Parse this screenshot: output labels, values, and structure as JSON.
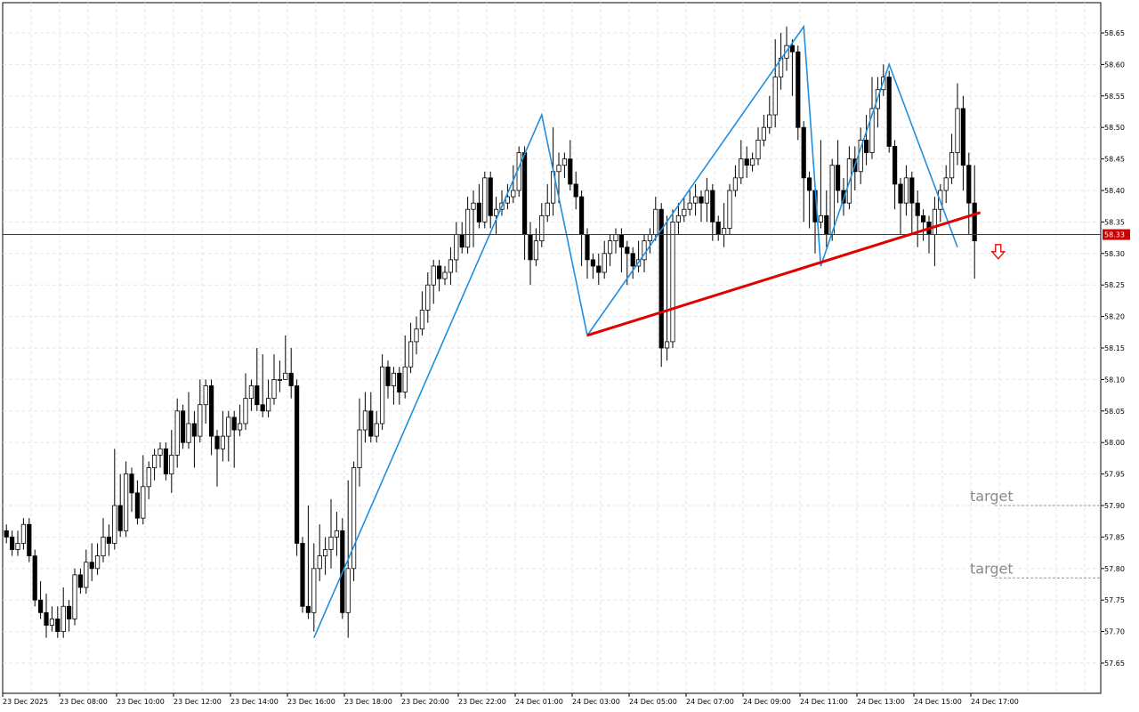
{
  "chart_data": {
    "type": "candlestick",
    "y_range": [
      57.61,
      58.71
    ],
    "y_ticks": [
      "58.65",
      "58.60",
      "58.55",
      "58.50",
      "58.45",
      "58.40",
      "58.35",
      "58.30",
      "58.25",
      "58.20",
      "58.15",
      "58.10",
      "58.05",
      "58.00",
      "57.95",
      "57.90",
      "57.85",
      "57.80",
      "57.75",
      "57.70",
      "57.65"
    ],
    "x_tick_labels": [
      "23 Dec 2025",
      "23 Dec 08:00",
      "23 Dec 10:00",
      "23 Dec 12:00",
      "23 Dec 14:00",
      "23 Dec 16:00",
      "23 Dec 18:00",
      "23 Dec 20:00",
      "23 Dec 22:00",
      "24 Dec 01:00",
      "24 Dec 03:00",
      "24 Dec 05:00",
      "24 Dec 07:00",
      "24 Dec 09:00",
      "24 Dec 11:00",
      "24 Dec 13:00",
      "24 Dec 15:00",
      "24 Dec 17:00"
    ],
    "bar_interval": "15 min",
    "grid": true,
    "current_price": {
      "value": 58.33,
      "label": "58.33",
      "color": "#cc0000"
    },
    "colors": {
      "bull_body": "#ffffff",
      "bear_body": "#000000",
      "wick": "#000000",
      "zigzag": "#1e8fe0",
      "neckline": "#e00000",
      "signal_arrow": "#e00000",
      "grid": "#e6e6e6",
      "annotation": "#8a8a8a",
      "target_line": "#999999"
    },
    "zigzag_points": [
      [
        57.69,
        57.69
      ],
      [
        58.52,
        58.52
      ]
    ],
    "zigzag": [
      {
        "bar": 54,
        "price": 57.69
      },
      {
        "bar": 94,
        "price": 58.52
      },
      {
        "bar": 102,
        "price": 58.17
      },
      {
        "bar": 140,
        "price": 58.66
      },
      {
        "bar": 143,
        "price": 58.28
      },
      {
        "bar": 155,
        "price": 58.6
      },
      {
        "bar": 167,
        "price": 58.31
      }
    ],
    "neckline": [
      {
        "bar": 102,
        "price": 58.17
      },
      {
        "bar": 171,
        "price": 58.365
      }
    ],
    "signal": {
      "type": "down-arrow",
      "bar": 174,
      "price": 58.3
    },
    "targets": [
      {
        "label": "target",
        "price": 57.9
      },
      {
        "label": "target",
        "price": 57.785
      }
    ],
    "candles": [
      [
        57.86,
        57.85,
        57.87,
        57.84
      ],
      [
        57.85,
        57.83,
        57.86,
        57.82
      ],
      [
        57.83,
        57.84,
        57.86,
        57.82
      ],
      [
        57.84,
        57.87,
        57.88,
        57.83
      ],
      [
        57.87,
        57.82,
        57.88,
        57.81
      ],
      [
        57.82,
        57.75,
        57.83,
        57.74
      ],
      [
        57.75,
        57.73,
        57.78,
        57.72
      ],
      [
        57.73,
        57.71,
        57.76,
        57.69
      ],
      [
        57.71,
        57.72,
        57.74,
        57.7
      ],
      [
        57.72,
        57.7,
        57.74,
        57.69
      ],
      [
        57.7,
        57.74,
        57.77,
        57.69
      ],
      [
        57.74,
        57.72,
        57.75,
        57.7
      ],
      [
        57.72,
        57.79,
        57.8,
        57.71
      ],
      [
        57.79,
        57.77,
        57.8,
        57.76
      ],
      [
        57.77,
        57.81,
        57.83,
        57.76
      ],
      [
        57.81,
        57.8,
        57.84,
        57.78
      ],
      [
        57.8,
        57.82,
        57.84,
        57.79
      ],
      [
        57.82,
        57.85,
        57.88,
        57.81
      ],
      [
        57.85,
        57.84,
        57.87,
        57.82
      ],
      [
        57.84,
        57.9,
        57.99,
        57.83
      ],
      [
        57.9,
        57.86,
        57.95,
        57.85
      ],
      [
        57.86,
        57.95,
        57.97,
        57.85
      ],
      [
        57.95,
        57.92,
        57.96,
        57.89
      ],
      [
        57.92,
        57.88,
        57.94,
        57.87
      ],
      [
        57.88,
        57.93,
        57.98,
        57.87
      ],
      [
        57.93,
        57.96,
        57.97,
        57.91
      ],
      [
        57.96,
        57.98,
        57.99,
        57.94
      ],
      [
        57.98,
        57.99,
        58.0,
        57.96
      ],
      [
        57.99,
        57.95,
        58.0,
        57.94
      ],
      [
        57.95,
        57.98,
        58.02,
        57.92
      ],
      [
        57.98,
        58.05,
        58.07,
        57.96
      ],
      [
        58.05,
        58.0,
        58.06,
        57.99
      ],
      [
        58.0,
        58.03,
        58.08,
        57.99
      ],
      [
        58.03,
        58.01,
        58.05,
        57.96
      ],
      [
        58.01,
        58.06,
        58.1,
        58.0
      ],
      [
        58.06,
        58.09,
        58.1,
        58.03
      ],
      [
        58.09,
        58.01,
        58.1,
        57.98
      ],
      [
        58.01,
        57.99,
        58.02,
        57.93
      ],
      [
        57.99,
        58.01,
        58.05,
        57.97
      ],
      [
        58.01,
        58.04,
        58.05,
        57.97
      ],
      [
        58.04,
        58.02,
        58.05,
        57.96
      ],
      [
        58.02,
        58.03,
        58.06,
        58.01
      ],
      [
        58.03,
        58.07,
        58.11,
        58.02
      ],
      [
        58.07,
        58.09,
        58.1,
        58.05
      ],
      [
        58.09,
        58.06,
        58.15,
        58.05
      ],
      [
        58.06,
        58.05,
        58.14,
        58.04
      ],
      [
        58.05,
        58.07,
        58.1,
        58.04
      ],
      [
        58.07,
        58.1,
        58.14,
        58.06
      ],
      [
        58.1,
        58.1,
        58.13,
        58.08
      ],
      [
        58.1,
        58.11,
        58.17,
        58.1
      ],
      [
        58.11,
        58.09,
        58.15,
        58.07
      ],
      [
        58.09,
        57.84,
        58.1,
        57.82
      ],
      [
        57.84,
        57.74,
        57.85,
        57.73
      ],
      [
        57.74,
        57.73,
        57.9,
        57.72
      ],
      [
        57.73,
        57.8,
        57.84,
        57.7
      ],
      [
        57.8,
        57.82,
        57.87,
        57.78
      ],
      [
        57.82,
        57.83,
        57.85,
        57.79
      ],
      [
        57.83,
        57.85,
        57.91,
        57.8
      ],
      [
        57.85,
        57.86,
        57.89,
        57.82
      ],
      [
        57.86,
        57.73,
        57.88,
        57.72
      ],
      [
        57.73,
        57.8,
        57.94,
        57.69
      ],
      [
        57.8,
        57.96,
        57.97,
        57.78
      ],
      [
        57.96,
        58.02,
        58.07,
        57.93
      ],
      [
        58.02,
        58.05,
        58.08,
        58.0
      ],
      [
        58.05,
        58.01,
        58.08,
        58.0
      ],
      [
        58.01,
        58.03,
        58.05,
        58.0
      ],
      [
        58.03,
        58.12,
        58.14,
        58.02
      ],
      [
        58.12,
        58.09,
        58.13,
        58.07
      ],
      [
        58.09,
        58.11,
        58.12,
        58.06
      ],
      [
        58.11,
        58.08,
        58.12,
        58.06
      ],
      [
        58.08,
        58.12,
        58.17,
        58.07
      ],
      [
        58.12,
        58.16,
        58.19,
        58.11
      ],
      [
        58.16,
        58.18,
        58.2,
        58.14
      ],
      [
        58.18,
        58.21,
        58.24,
        58.17
      ],
      [
        58.21,
        58.25,
        58.27,
        58.19
      ],
      [
        58.25,
        58.28,
        58.29,
        58.22
      ],
      [
        58.28,
        58.26,
        58.29,
        58.24
      ],
      [
        58.26,
        58.27,
        58.28,
        58.25
      ],
      [
        58.27,
        58.29,
        58.31,
        58.25
      ],
      [
        58.29,
        58.33,
        58.35,
        58.27
      ],
      [
        58.33,
        58.31,
        58.35,
        58.3
      ],
      [
        58.31,
        58.37,
        58.39,
        58.3
      ],
      [
        58.37,
        58.38,
        58.4,
        58.31
      ],
      [
        58.38,
        58.35,
        58.41,
        58.34
      ],
      [
        58.35,
        58.42,
        58.43,
        58.34
      ],
      [
        58.42,
        58.36,
        58.43,
        58.34
      ],
      [
        58.36,
        58.37,
        58.39,
        58.33
      ],
      [
        58.37,
        58.38,
        58.4,
        58.36
      ],
      [
        58.38,
        58.39,
        58.41,
        58.37
      ],
      [
        58.39,
        58.4,
        58.44,
        58.38
      ],
      [
        58.4,
        58.46,
        58.47,
        58.39
      ],
      [
        58.46,
        58.33,
        58.47,
        58.29
      ],
      [
        58.33,
        58.29,
        58.35,
        58.25
      ],
      [
        58.29,
        58.32,
        58.34,
        58.28
      ],
      [
        58.32,
        58.36,
        58.38,
        58.31
      ],
      [
        58.36,
        58.38,
        58.41,
        58.35
      ],
      [
        58.38,
        58.43,
        58.5,
        58.36
      ],
      [
        58.43,
        58.44,
        58.46,
        58.38
      ],
      [
        58.44,
        58.45,
        58.46,
        58.42
      ],
      [
        58.45,
        58.41,
        58.48,
        58.4
      ],
      [
        58.41,
        58.39,
        58.43,
        58.37
      ],
      [
        58.39,
        58.33,
        58.4,
        58.28
      ],
      [
        58.33,
        58.29,
        58.34,
        58.26
      ],
      [
        58.29,
        58.28,
        58.3,
        58.26
      ],
      [
        58.28,
        58.27,
        58.3,
        58.25
      ],
      [
        58.27,
        58.3,
        58.32,
        58.26
      ],
      [
        58.3,
        58.32,
        58.33,
        58.28
      ],
      [
        58.32,
        58.33,
        58.34,
        58.3
      ],
      [
        58.33,
        58.31,
        58.34,
        58.27
      ],
      [
        58.31,
        58.3,
        58.32,
        58.25
      ],
      [
        58.3,
        58.28,
        58.31,
        58.26
      ],
      [
        58.28,
        58.29,
        58.32,
        58.27
      ],
      [
        58.29,
        58.32,
        58.33,
        58.27
      ],
      [
        58.32,
        58.33,
        58.34,
        58.3
      ],
      [
        58.33,
        58.37,
        58.39,
        58.32
      ],
      [
        58.37,
        58.15,
        58.38,
        58.12
      ],
      [
        58.15,
        58.16,
        58.36,
        58.13
      ],
      [
        58.16,
        58.35,
        58.37,
        58.15
      ],
      [
        58.35,
        58.36,
        58.38,
        58.33
      ],
      [
        58.36,
        58.37,
        58.39,
        58.35
      ],
      [
        58.37,
        58.38,
        58.4,
        58.36
      ],
      [
        58.38,
        58.39,
        58.41,
        58.36
      ],
      [
        58.39,
        58.38,
        58.4,
        58.35
      ],
      [
        58.38,
        58.4,
        58.42,
        58.35
      ],
      [
        58.4,
        58.35,
        58.41,
        58.32
      ],
      [
        58.35,
        58.33,
        58.36,
        58.32
      ],
      [
        58.33,
        58.34,
        58.38,
        58.31
      ],
      [
        58.34,
        58.4,
        58.41,
        58.33
      ],
      [
        58.4,
        58.42,
        58.44,
        58.39
      ],
      [
        58.42,
        58.45,
        58.48,
        58.41
      ],
      [
        58.45,
        58.44,
        58.47,
        58.42
      ],
      [
        58.44,
        58.45,
        58.46,
        58.43
      ],
      [
        58.45,
        58.48,
        58.5,
        58.44
      ],
      [
        58.48,
        58.5,
        58.52,
        58.47
      ],
      [
        58.5,
        58.52,
        58.55,
        58.49
      ],
      [
        58.52,
        58.58,
        58.64,
        58.5
      ],
      [
        58.58,
        58.61,
        58.65,
        58.56
      ],
      [
        58.61,
        58.63,
        58.66,
        58.59
      ],
      [
        58.63,
        58.62,
        58.64,
        58.55
      ],
      [
        58.62,
        58.5,
        58.63,
        58.48
      ],
      [
        58.5,
        58.42,
        58.51,
        58.35
      ],
      [
        58.42,
        58.4,
        58.43,
        58.34
      ],
      [
        58.4,
        58.35,
        58.41,
        58.3
      ],
      [
        58.35,
        58.36,
        58.48,
        58.34
      ],
      [
        58.36,
        58.33,
        58.4,
        58.31
      ],
      [
        58.33,
        58.44,
        58.45,
        58.32
      ],
      [
        58.44,
        58.4,
        58.48,
        58.38
      ],
      [
        58.4,
        58.38,
        58.42,
        58.36
      ],
      [
        58.38,
        58.45,
        58.47,
        58.37
      ],
      [
        58.45,
        58.43,
        58.47,
        58.4
      ],
      [
        58.43,
        58.48,
        58.5,
        58.41
      ],
      [
        58.48,
        58.46,
        58.52,
        58.44
      ],
      [
        58.46,
        58.53,
        58.58,
        58.45
      ],
      [
        58.53,
        58.56,
        58.58,
        58.5
      ],
      [
        58.56,
        58.58,
        58.6,
        58.55
      ],
      [
        58.58,
        58.47,
        58.59,
        58.46
      ],
      [
        58.47,
        58.41,
        58.48,
        58.37
      ],
      [
        58.41,
        58.38,
        58.42,
        58.33
      ],
      [
        58.38,
        58.42,
        58.44,
        58.36
      ],
      [
        58.42,
        58.38,
        58.43,
        58.33
      ],
      [
        58.38,
        58.36,
        58.4,
        58.31
      ],
      [
        58.36,
        58.35,
        58.37,
        58.32
      ],
      [
        58.35,
        58.33,
        58.36,
        58.3
      ],
      [
        58.33,
        58.37,
        58.39,
        58.28
      ],
      [
        58.37,
        58.4,
        58.41,
        58.35
      ],
      [
        58.4,
        58.42,
        58.44,
        58.38
      ],
      [
        58.42,
        58.46,
        58.49,
        58.41
      ],
      [
        58.46,
        58.53,
        58.57,
        58.44
      ],
      [
        58.53,
        58.44,
        58.55,
        58.4
      ],
      [
        58.44,
        58.38,
        58.46,
        58.33
      ],
      [
        58.38,
        58.32,
        58.44,
        58.26
      ]
    ]
  }
}
